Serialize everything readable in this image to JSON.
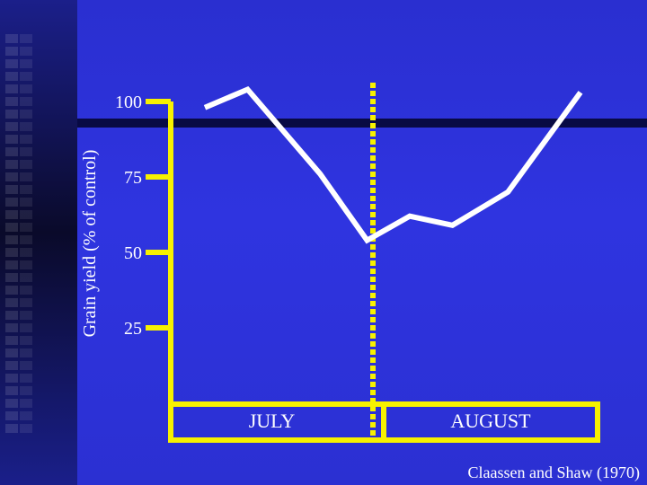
{
  "chart_data": {
    "type": "line",
    "title": "",
    "ylabel": "Grain yield (% of control)",
    "xlabel": "",
    "yticks": [
      100,
      75,
      50,
      25
    ],
    "ylim": [
      0,
      100
    ],
    "x_categories": [
      "JULY",
      "AUGUST"
    ],
    "x_span": [
      0,
      100
    ],
    "series": [
      {
        "values": [
          {
            "x": 8,
            "y": 98
          },
          {
            "x": 18,
            "y": 104
          },
          {
            "x": 35,
            "y": 76
          },
          {
            "x": 46,
            "y": 54
          },
          {
            "x": 56,
            "y": 62
          },
          {
            "x": 66,
            "y": 59
          },
          {
            "x": 79,
            "y": 70
          },
          {
            "x": 96,
            "y": 103
          }
        ]
      }
    ],
    "grid": false,
    "legend": false,
    "reference_line": {
      "x": 46
    },
    "colors": {
      "line": "#ffffff",
      "axis": "#f7f100",
      "divider": "#f7f100",
      "text": "#ffffff"
    }
  },
  "citation": "Claassen and Shaw (1970)"
}
